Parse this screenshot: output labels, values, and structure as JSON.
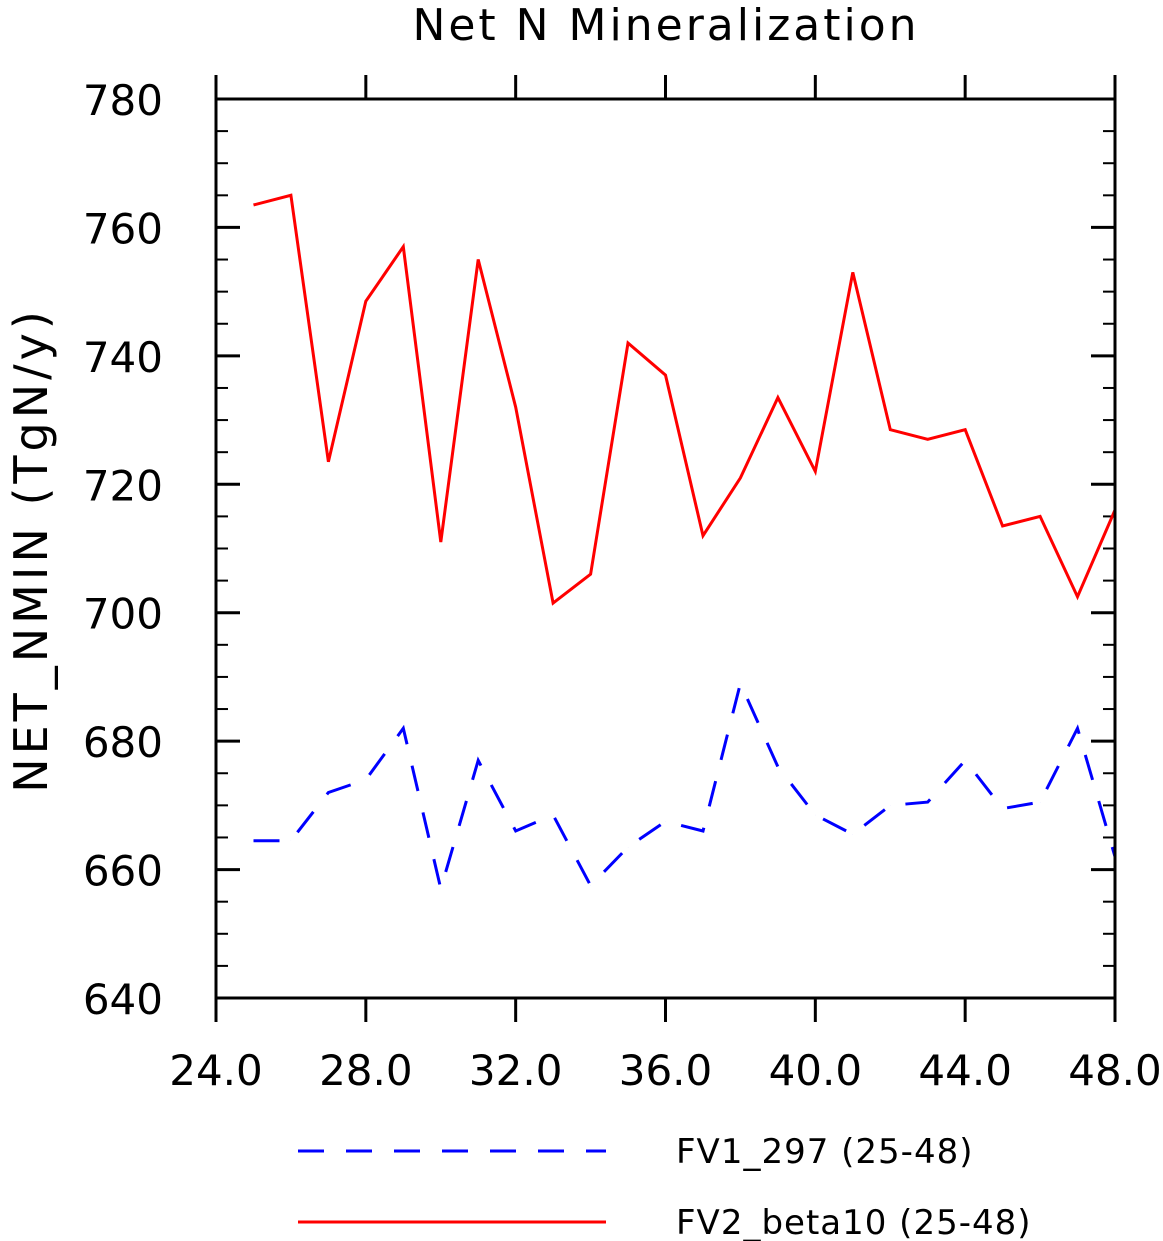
{
  "chart_data": {
    "type": "line",
    "title": "Net N Mineralization",
    "ylabel": "NET_NMIN   (TgN/y)",
    "xlabel": "",
    "xlim": [
      24.0,
      48.0
    ],
    "ylim": [
      640,
      780
    ],
    "x_ticks": [
      "24.0",
      "28.0",
      "32.0",
      "36.0",
      "40.0",
      "44.0",
      "48.0"
    ],
    "y_ticks": [
      "640",
      "660",
      "680",
      "700",
      "720",
      "740",
      "760",
      "780"
    ],
    "x": [
      25,
      26,
      27,
      28,
      29,
      30,
      31,
      32,
      33,
      34,
      35,
      36,
      37,
      38,
      39,
      40,
      41,
      42,
      43,
      44,
      45,
      46,
      47,
      48
    ],
    "series": [
      {
        "name": "FV1_297 (25-48)",
        "color": "#0000ff",
        "dash": true,
        "values": [
          664.5,
          664.5,
          672,
          674,
          682,
          657,
          677,
          666,
          668.5,
          657.5,
          663.5,
          667.5,
          666,
          689,
          676,
          668.5,
          665.5,
          670,
          670.5,
          677,
          669.5,
          670.5,
          682,
          662
        ]
      },
      {
        "name": "FV2_beta10 (25-48)",
        "color": "#ff0000",
        "dash": false,
        "values": [
          763.5,
          765,
          723.5,
          748.5,
          757,
          711,
          755,
          732,
          701.5,
          706,
          742,
          737,
          712,
          721,
          733.5,
          722,
          753,
          728.5,
          727,
          728.5,
          713.5,
          715,
          702.5,
          716
        ]
      }
    ],
    "legend": "bottom"
  }
}
